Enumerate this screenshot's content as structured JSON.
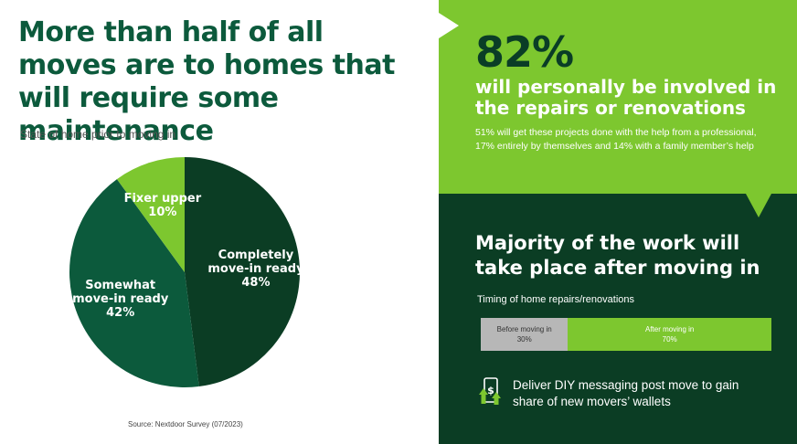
{
  "headline": "More than half of all moves are to homes that will require some maintenance",
  "chart_caption": "State of home prior to moving in",
  "source": "Source: Nextdoor Survey (07/2023)",
  "chart_data": [
    {
      "type": "pie",
      "title": "State of home prior to moving in",
      "categories": [
        "Completely move-in ready",
        "Somewhat move-in ready",
        "Fixer upper"
      ],
      "values": [
        48,
        42,
        10
      ],
      "labels": [
        {
          "line1": "Completely",
          "line2": "move-in ready",
          "pct": "48%"
        },
        {
          "line1": "Somewhat",
          "line2": "move-in ready",
          "pct": "42%"
        },
        {
          "line1": "Fixer upper",
          "pct": "10%"
        }
      ],
      "colors": [
        "#0b3d24",
        "#0c5a3c",
        "#7dc72f"
      ]
    },
    {
      "type": "bar",
      "stacked": true,
      "orientation": "horizontal",
      "title": "Timing of home repairs/renovations",
      "categories": [
        "Before moving in",
        "After moving in"
      ],
      "values": [
        30,
        70
      ],
      "value_labels": [
        "30%",
        "70%"
      ],
      "colors": [
        "#b7b7b7",
        "#7dc72f"
      ]
    }
  ],
  "stat": {
    "value": "82%",
    "headline": "will personally be involved in the repairs or renovations",
    "body": "51% will get these projects done with the help from a professional, 17% entirely by themselves and 14% with a family member’s help"
  },
  "majority": {
    "headline": "Majority of the work will take place after moving in",
    "timing_caption": "Timing of home repairs/renovations",
    "before_label": "Before moving in",
    "before_value": "30%",
    "after_label": "After moving in",
    "after_value": "70%"
  },
  "callout": {
    "icon": "phone-money-icon",
    "text": "Deliver DIY messaging post move to gain share of new movers’ wallets"
  },
  "colors": {
    "dark_green": "#0b3d24",
    "mid_green": "#0c5a3c",
    "lime": "#7dc72f",
    "gray": "#b7b7b7"
  }
}
